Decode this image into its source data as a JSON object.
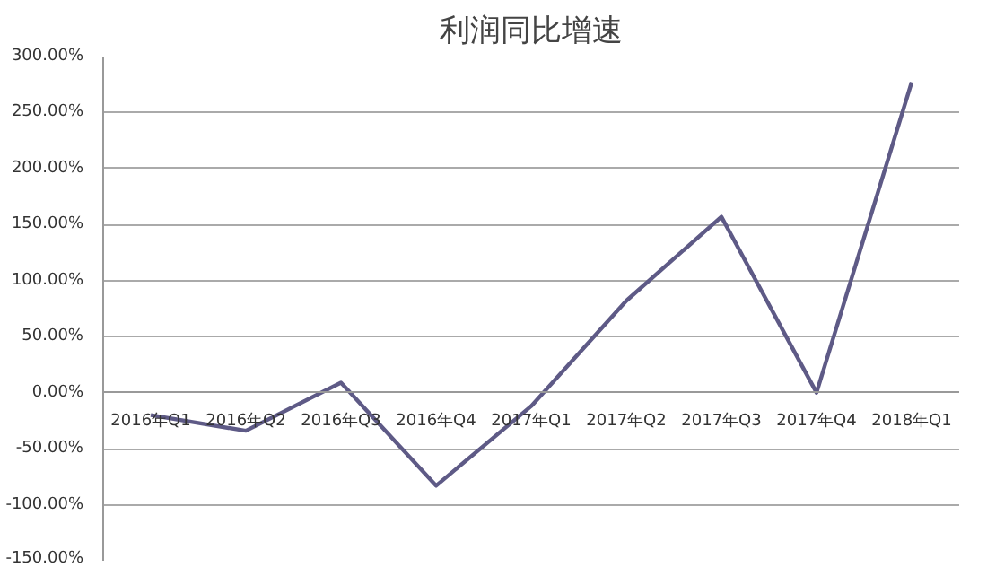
{
  "chart_data": {
    "type": "line",
    "title": "利润同比增速",
    "categories": [
      "2016年Q1",
      "2016年Q2",
      "2016年Q3",
      "2016年Q4",
      "2017年Q1",
      "2017年Q2",
      "2017年Q3",
      "2017年Q4",
      "2018年Q1"
    ],
    "series": [
      {
        "color": "#5e5a86",
        "values": [
          -20,
          -34,
          9,
          -83,
          -12,
          82,
          157,
          0,
          277
        ]
      }
    ],
    "ylim": [
      -150,
      300
    ],
    "yticks": [
      {
        "value": -150,
        "label": "-150.00%"
      },
      {
        "value": -100,
        "label": "-100.00%"
      },
      {
        "value": -50,
        "label": "-50.00%"
      },
      {
        "value": 0,
        "label": "0.00%"
      },
      {
        "value": 50,
        "label": "50.00%"
      },
      {
        "value": 100,
        "label": "100.00%"
      },
      {
        "value": 150,
        "label": "150.00%"
      },
      {
        "value": 200,
        "label": "200.00%"
      },
      {
        "value": 250,
        "label": "250.00%"
      },
      {
        "value": 300,
        "label": "300.00%"
      }
    ],
    "grid": "y",
    "marker": "none",
    "line_style": "solid"
  }
}
